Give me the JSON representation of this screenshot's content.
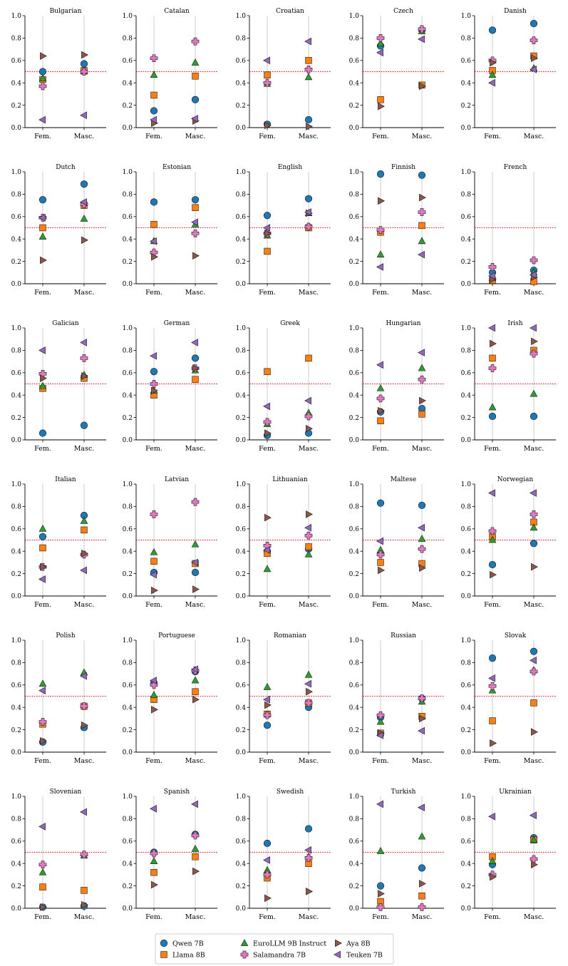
{
  "chart_data": {
    "type": "scatter",
    "threshold": 0.5,
    "ylim": [
      0,
      1
    ],
    "yticks": [
      "0.0",
      "0.2",
      "0.4",
      "0.6",
      "0.8",
      "1.0"
    ],
    "categories": [
      "Fem.",
      "Masc."
    ],
    "series": [
      {
        "name": "Qwen 7B",
        "color": "#1f77b4",
        "marker": "circle"
      },
      {
        "name": "Llama 8B",
        "color": "#ff7f0e",
        "marker": "square"
      },
      {
        "name": "EuroLLM 9B Instruct",
        "color": "#2ca02c",
        "marker": "triangle-up"
      },
      {
        "name": "Salamandra 7B",
        "color": "#e377c2",
        "marker": "plus"
      },
      {
        "name": "Aya 8B",
        "color": "#8c564b",
        "marker": "triangle-right"
      },
      {
        "name": "Teuken 7B",
        "color": "#9467bd",
        "marker": "triangle-left"
      }
    ],
    "panels": [
      {
        "title": "Bulgarian",
        "fem": [
          0.5,
          0.43,
          0.44,
          0.37,
          0.64,
          0.07
        ],
        "masc": [
          0.57,
          0.51,
          0.5,
          0.5,
          0.65,
          0.11
        ]
      },
      {
        "title": "Catalan",
        "fem": [
          0.15,
          0.29,
          0.47,
          0.62,
          0.04,
          0.07
        ],
        "masc": [
          0.25,
          0.46,
          0.58,
          0.77,
          0.06,
          0.08
        ]
      },
      {
        "title": "Croatian",
        "fem": [
          0.03,
          0.47,
          0.39,
          0.4,
          0.02,
          0.6
        ],
        "masc": [
          0.07,
          0.6,
          0.45,
          0.52,
          0.01,
          0.77
        ]
      },
      {
        "title": "Czech",
        "fem": [
          0.73,
          0.25,
          0.75,
          0.8,
          0.19,
          0.67
        ],
        "masc": [
          0.87,
          0.38,
          0.86,
          0.88,
          0.37,
          0.79
        ]
      },
      {
        "title": "Danish",
        "fem": [
          0.87,
          0.51,
          0.47,
          0.6,
          0.58,
          0.4
        ],
        "masc": [
          0.93,
          0.64,
          0.53,
          0.78,
          0.62,
          0.52
        ]
      },
      {
        "title": "Dutch",
        "fem": [
          0.75,
          0.5,
          0.42,
          0.59,
          0.21,
          0.59
        ],
        "masc": [
          0.89,
          0.7,
          0.58,
          0.71,
          0.39,
          0.73
        ]
      },
      {
        "title": "Estonian",
        "fem": [
          0.73,
          0.53,
          0.38,
          0.28,
          0.24,
          0.38
        ],
        "masc": [
          0.75,
          0.68,
          0.53,
          0.45,
          0.25,
          0.55
        ]
      },
      {
        "title": "English",
        "fem": [
          0.61,
          0.29,
          0.43,
          0.45,
          0.45,
          0.5
        ],
        "masc": [
          0.76,
          0.5,
          0.63,
          0.51,
          0.63,
          0.64
        ]
      },
      {
        "title": "Finnish",
        "fem": [
          0.98,
          0.46,
          0.26,
          0.48,
          0.74,
          0.15
        ],
        "masc": [
          0.97,
          0.52,
          0.38,
          0.64,
          0.77,
          0.26
        ]
      },
      {
        "title": "French",
        "fem": [
          0.1,
          0.03,
          0.05,
          0.15,
          0.04,
          0.07
        ],
        "masc": [
          0.12,
          0.02,
          0.1,
          0.21,
          0.06,
          0.08
        ]
      },
      {
        "title": "Galician",
        "fem": [
          0.06,
          0.46,
          0.48,
          0.59,
          0.55,
          0.8
        ],
        "masc": [
          0.13,
          0.55,
          0.58,
          0.73,
          0.57,
          0.87
        ]
      },
      {
        "title": "German",
        "fem": [
          0.61,
          0.4,
          0.44,
          0.5,
          0.44,
          0.75
        ],
        "masc": [
          0.73,
          0.54,
          0.62,
          0.64,
          0.64,
          0.87
        ]
      },
      {
        "title": "Greek",
        "fem": [
          0.04,
          0.61,
          0.14,
          0.16,
          0.06,
          0.3
        ],
        "masc": [
          0.06,
          0.73,
          0.24,
          0.21,
          0.1,
          0.35
        ]
      },
      {
        "title": "Hungarian",
        "fem": [
          0.25,
          0.17,
          0.46,
          0.37,
          0.26,
          0.67
        ],
        "masc": [
          0.28,
          0.23,
          0.64,
          0.54,
          0.35,
          0.78
        ]
      },
      {
        "title": "Irish",
        "fem": [
          0.21,
          0.73,
          0.29,
          0.64,
          0.86,
          1.0
        ],
        "masc": [
          0.21,
          0.8,
          0.41,
          0.77,
          0.88,
          1.0
        ]
      },
      {
        "title": "Italian",
        "fem": [
          0.53,
          0.43,
          0.6,
          0.26,
          0.26,
          0.15
        ],
        "masc": [
          0.72,
          0.59,
          0.67,
          0.37,
          0.38,
          0.23
        ]
      },
      {
        "title": "Latvian",
        "fem": [
          0.21,
          0.31,
          0.39,
          0.73,
          0.05,
          0.19
        ],
        "masc": [
          0.21,
          0.29,
          0.46,
          0.84,
          0.06,
          0.3
        ]
      },
      {
        "title": "Lithuanian",
        "fem": [
          0.4,
          0.38,
          0.24,
          0.45,
          0.7,
          0.41
        ],
        "masc": [
          0.42,
          0.44,
          0.37,
          0.54,
          0.73,
          0.61
        ]
      },
      {
        "title": "Maltese",
        "fem": [
          0.83,
          0.3,
          0.41,
          0.37,
          0.23,
          0.49
        ],
        "masc": [
          0.81,
          0.29,
          0.51,
          0.42,
          0.25,
          0.61
        ]
      },
      {
        "title": "Norwegian",
        "fem": [
          0.28,
          0.53,
          0.5,
          0.58,
          0.19,
          0.92
        ],
        "masc": [
          0.47,
          0.66,
          0.61,
          0.73,
          0.26,
          0.92
        ]
      },
      {
        "title": "Polish",
        "fem": [
          0.09,
          0.25,
          0.61,
          0.27,
          0.1,
          0.55
        ],
        "masc": [
          0.22,
          0.41,
          0.71,
          0.41,
          0.24,
          0.68
        ]
      },
      {
        "title": "Portuguese",
        "fem": [
          0.62,
          0.47,
          0.51,
          0.6,
          0.38,
          0.64
        ],
        "masc": [
          0.72,
          0.54,
          0.64,
          0.73,
          0.47,
          0.74
        ]
      },
      {
        "title": "Romanian",
        "fem": [
          0.24,
          0.34,
          0.58,
          0.33,
          0.42,
          0.47
        ],
        "masc": [
          0.4,
          0.44,
          0.69,
          0.44,
          0.54,
          0.61
        ]
      },
      {
        "title": "Russian",
        "fem": [
          0.31,
          0.17,
          0.27,
          0.33,
          0.17,
          0.15
        ],
        "masc": [
          0.48,
          0.32,
          0.45,
          0.48,
          0.3,
          0.19
        ]
      },
      {
        "title": "Slovak",
        "fem": [
          0.84,
          0.28,
          0.55,
          0.59,
          0.08,
          0.66
        ],
        "masc": [
          0.9,
          0.44,
          0.73,
          0.72,
          0.18,
          0.82
        ]
      },
      {
        "title": "Slovenian",
        "fem": [
          0.01,
          0.19,
          0.32,
          0.39,
          0.01,
          0.73
        ],
        "masc": [
          0.02,
          0.16,
          0.47,
          0.48,
          0.03,
          0.86
        ]
      },
      {
        "title": "Spanish",
        "fem": [
          0.5,
          0.32,
          0.42,
          0.49,
          0.21,
          0.89
        ],
        "masc": [
          0.66,
          0.46,
          0.53,
          0.65,
          0.33,
          0.93
        ]
      },
      {
        "title": "Swedish",
        "fem": [
          0.58,
          0.27,
          0.34,
          0.3,
          0.09,
          0.43
        ],
        "masc": [
          0.71,
          0.4,
          0.46,
          0.45,
          0.15,
          0.52
        ]
      },
      {
        "title": "Turkish",
        "fem": [
          0.2,
          0.06,
          0.51,
          0.01,
          0.13,
          0.93
        ],
        "masc": [
          0.36,
          0.11,
          0.64,
          0.01,
          0.22,
          0.9
        ]
      },
      {
        "title": "Ukrainian",
        "fem": [
          0.39,
          0.46,
          0.42,
          0.3,
          0.28,
          0.82
        ],
        "masc": [
          0.63,
          0.61,
          0.61,
          0.44,
          0.39,
          0.83
        ]
      }
    ]
  }
}
